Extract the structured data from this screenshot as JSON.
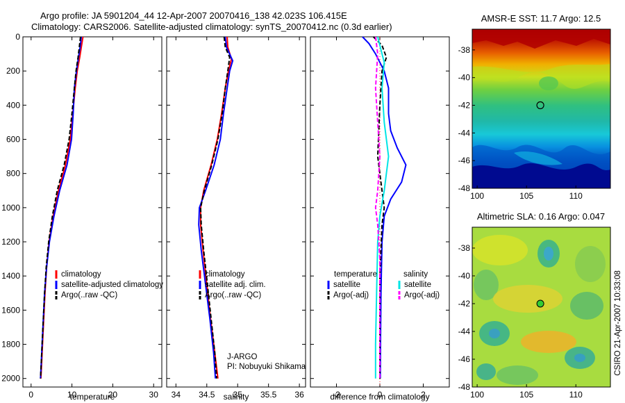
{
  "header": {
    "line1": "Argo profile: JA 5901204_44 12-Apr-2007 20070416_138 42.023S 106.415E",
    "line2": "Climatology: CARS2006. Satellite-adjusted climatology: synTS_20070412.nc (0.3d earlier)"
  },
  "credit": {
    "pi_line1": "J-ARGO",
    "pi_line2": "PI: Nobuyuki Shikama",
    "side_stamp": "CSIRO 21-Apr-2007 10:33:08"
  },
  "colors": {
    "climatology": "#ff0000",
    "satellite": "#0000ff",
    "argo": "#000000",
    "salinity_satellite": "#00e5e5",
    "salinity_argo": "#ff00ff",
    "marker_sst": "#2fbfa0",
    "marker_sla": "#33cc33"
  },
  "chart_data": [
    {
      "type": "line",
      "xlabel": "temperature",
      "ylabel": "",
      "xlim": [
        -2,
        32
      ],
      "ylim": [
        2050,
        0
      ],
      "x_ticks": [
        "0",
        "10",
        "20",
        "30"
      ],
      "x_tick_values": [
        0,
        10,
        20,
        30
      ],
      "y_ticks": [
        "0",
        "200",
        "400",
        "600",
        "800",
        "1000",
        "1200",
        "1400",
        "1600",
        "1800",
        "2000"
      ],
      "y_tick_values": [
        0,
        200,
        400,
        600,
        800,
        1000,
        1200,
        1400,
        1600,
        1800,
        2000
      ],
      "legend_position": "lower-right",
      "legend": [
        "climatology",
        "satellite-adjusted climatology",
        "Argo(..raw -QC)"
      ],
      "series": [
        {
          "name": "climatology",
          "style": "solid",
          "color_key": "climatology",
          "points": [
            [
              12.7,
              0
            ],
            [
              12.3,
              60
            ],
            [
              11.9,
              120
            ],
            [
              11.3,
              200
            ],
            [
              10.8,
              300
            ],
            [
              10.2,
              450
            ],
            [
              9.6,
              600
            ],
            [
              8.4,
              750
            ],
            [
              6.7,
              900
            ],
            [
              5.4,
              1050
            ],
            [
              4.4,
              1200
            ],
            [
              3.8,
              1350
            ],
            [
              3.4,
              1500
            ],
            [
              3.0,
              1700
            ],
            [
              2.6,
              1900
            ],
            [
              2.4,
              2000
            ]
          ]
        },
        {
          "name": "satellite-adjusted climatology",
          "style": "solid",
          "color_key": "satellite",
          "points": [
            [
              12.3,
              0
            ],
            [
              12.0,
              60
            ],
            [
              11.6,
              120
            ],
            [
              11.1,
              200
            ],
            [
              10.6,
              300
            ],
            [
              10.3,
              450
            ],
            [
              9.9,
              600
            ],
            [
              8.8,
              750
            ],
            [
              7.0,
              900
            ],
            [
              5.6,
              1050
            ],
            [
              4.5,
              1200
            ],
            [
              3.8,
              1350
            ],
            [
              3.3,
              1500
            ],
            [
              2.9,
              1700
            ],
            [
              2.5,
              1900
            ],
            [
              2.3,
              2000
            ]
          ]
        },
        {
          "name": "Argo(..raw -QC)",
          "style": "dashed",
          "color_key": "argo",
          "points": [
            [
              12.1,
              0
            ],
            [
              11.8,
              60
            ],
            [
              11.5,
              120
            ],
            [
              11.0,
              200
            ],
            [
              10.6,
              300
            ],
            [
              10.0,
              450
            ],
            [
              9.3,
              600
            ],
            [
              8.1,
              750
            ],
            [
              6.4,
              900
            ],
            [
              5.2,
              1050
            ],
            [
              4.3,
              1200
            ],
            [
              3.7,
              1350
            ],
            [
              3.3,
              1500
            ],
            [
              2.9,
              1700
            ],
            [
              2.5,
              1900
            ],
            [
              2.3,
              2000
            ]
          ]
        }
      ]
    },
    {
      "type": "line",
      "xlabel": "salinity",
      "ylabel": "",
      "xlim": [
        33.85,
        36.1
      ],
      "ylim": [
        2050,
        0
      ],
      "x_ticks": [
        "34",
        "34.5",
        "35",
        "35.5",
        "36"
      ],
      "x_tick_values": [
        34,
        34.5,
        35,
        35.5,
        36
      ],
      "legend_position": "lower-right",
      "legend": [
        "climatology",
        "satellite adj. clim.",
        "Argo(..raw -QC)"
      ],
      "series": [
        {
          "name": "climatology",
          "style": "solid",
          "color_key": "climatology",
          "points": [
            [
              34.83,
              0
            ],
            [
              34.84,
              60
            ],
            [
              34.9,
              130
            ],
            [
              34.85,
              200
            ],
            [
              34.8,
              300
            ],
            [
              34.74,
              450
            ],
            [
              34.67,
              600
            ],
            [
              34.57,
              750
            ],
            [
              34.45,
              900
            ],
            [
              34.4,
              1000
            ],
            [
              34.4,
              1100
            ],
            [
              34.44,
              1250
            ],
            [
              34.5,
              1450
            ],
            [
              34.56,
              1650
            ],
            [
              34.63,
              1850
            ],
            [
              34.68,
              2000
            ]
          ]
        },
        {
          "name": "satellite adj. clim.",
          "style": "solid",
          "color_key": "satellite",
          "points": [
            [
              34.8,
              0
            ],
            [
              34.82,
              60
            ],
            [
              34.92,
              140
            ],
            [
              34.87,
              200
            ],
            [
              34.83,
              300
            ],
            [
              34.77,
              450
            ],
            [
              34.72,
              600
            ],
            [
              34.62,
              750
            ],
            [
              34.48,
              900
            ],
            [
              34.38,
              1000
            ],
            [
              34.37,
              1100
            ],
            [
              34.41,
              1250
            ],
            [
              34.48,
              1450
            ],
            [
              34.55,
              1650
            ],
            [
              34.61,
              1850
            ],
            [
              34.64,
              2000
            ]
          ]
        },
        {
          "name": "Argo(..raw -QC)",
          "style": "dashed",
          "color_key": "argo",
          "points": [
            [
              34.78,
              0
            ],
            [
              34.8,
              60
            ],
            [
              34.87,
              120
            ],
            [
              34.84,
              200
            ],
            [
              34.8,
              300
            ],
            [
              34.75,
              450
            ],
            [
              34.68,
              600
            ],
            [
              34.58,
              750
            ],
            [
              34.46,
              900
            ],
            [
              34.4,
              1000
            ],
            [
              34.41,
              1100
            ],
            [
              34.45,
              1250
            ],
            [
              34.51,
              1450
            ],
            [
              34.57,
              1650
            ],
            [
              34.63,
              1850
            ],
            [
              34.66,
              2000
            ]
          ]
        }
      ]
    },
    {
      "type": "line",
      "xlabel": "difference from climatology",
      "ylabel": "",
      "xlim": [
        -3.2,
        3.2
      ],
      "ylim": [
        2050,
        0
      ],
      "x_ticks": [
        "-2",
        "0",
        "2"
      ],
      "x_tick_values": [
        -2,
        0,
        2
      ],
      "legend_position": "lower-center",
      "legend_groups": [
        {
          "heading": "temperature",
          "entries": [
            "satellite",
            "Argo(-adj)"
          ]
        },
        {
          "heading": "salinity",
          "entries": [
            "satellite",
            "Argo(-adj)"
          ]
        }
      ],
      "series": [
        {
          "name": "temperature satellite",
          "style": "solid",
          "color_key": "satellite",
          "points": [
            [
              -0.8,
              0
            ],
            [
              -0.5,
              40
            ],
            [
              -0.2,
              100
            ],
            [
              0.2,
              200
            ],
            [
              0.4,
              300
            ],
            [
              0.4,
              450
            ],
            [
              0.5,
              550
            ],
            [
              0.8,
              650
            ],
            [
              1.2,
              750
            ],
            [
              1.0,
              850
            ],
            [
              0.5,
              950
            ],
            [
              0.2,
              1050
            ],
            [
              0.1,
              1200
            ],
            [
              0.05,
              1500
            ],
            [
              0.03,
              1800
            ],
            [
              0.02,
              2000
            ]
          ]
        },
        {
          "name": "temperature Argo(-adj)",
          "style": "dashed",
          "color_key": "argo",
          "points": [
            [
              -0.3,
              0
            ],
            [
              0.1,
              50
            ],
            [
              0.3,
              120
            ],
            [
              0.1,
              200
            ],
            [
              0.0,
              400
            ],
            [
              -0.1,
              700
            ],
            [
              0.1,
              900
            ],
            [
              0.2,
              1000
            ],
            [
              0.1,
              1100
            ],
            [
              0.0,
              1400
            ],
            [
              0.0,
              1700
            ],
            [
              0.0,
              2000
            ]
          ]
        },
        {
          "name": "salinity satellite",
          "style": "solid",
          "color_key": "salinity_satellite",
          "points": [
            [
              -0.1,
              0
            ],
            [
              0.2,
              150
            ],
            [
              0.1,
              300
            ],
            [
              0.2,
              500
            ],
            [
              0.4,
              700
            ],
            [
              0.2,
              900
            ],
            [
              0.0,
              1050
            ],
            [
              -0.1,
              1200
            ],
            [
              -0.15,
              1500
            ],
            [
              -0.2,
              1800
            ],
            [
              -0.2,
              2000
            ]
          ]
        },
        {
          "name": "salinity Argo(-adj)",
          "style": "dashed",
          "color_key": "salinity_argo",
          "points": [
            [
              -0.2,
              0
            ],
            [
              -0.1,
              100
            ],
            [
              -0.2,
              300
            ],
            [
              -0.1,
              500
            ],
            [
              0.0,
              700
            ],
            [
              -0.1,
              900
            ],
            [
              -0.2,
              1000
            ],
            [
              -0.1,
              1100
            ],
            [
              0.0,
              1300
            ],
            [
              0.0,
              1600
            ],
            [
              0.0,
              2000
            ]
          ]
        }
      ]
    },
    {
      "type": "heatmap",
      "title": "AMSR-E SST: 11.7 Argo: 12.5",
      "xlim": [
        99.5,
        113.5
      ],
      "ylim": [
        -48,
        -36.5
      ],
      "x_ticks": [
        "100",
        "105",
        "110"
      ],
      "x_tick_values": [
        100,
        105,
        110
      ],
      "y_ticks": [
        "-38",
        "-40",
        "-42",
        "-44",
        "-46",
        "-48"
      ],
      "y_tick_values": [
        -38,
        -40,
        -42,
        -44,
        -46,
        -48
      ],
      "marker": {
        "lon": 106.4,
        "lat": -42.0
      }
    },
    {
      "type": "heatmap",
      "title": "Altimetric SLA: 0.16 Argo: 0.047",
      "xlim": [
        99.5,
        113.5
      ],
      "ylim": [
        -48,
        -36.5
      ],
      "x_ticks": [
        "100",
        "105",
        "110"
      ],
      "x_tick_values": [
        100,
        105,
        110
      ],
      "y_ticks": [
        "-38",
        "-40",
        "-42",
        "-44",
        "-46",
        "-48"
      ],
      "y_tick_values": [
        -38,
        -40,
        -42,
        -44,
        -46,
        -48
      ],
      "marker": {
        "lon": 106.4,
        "lat": -42.0
      }
    }
  ]
}
